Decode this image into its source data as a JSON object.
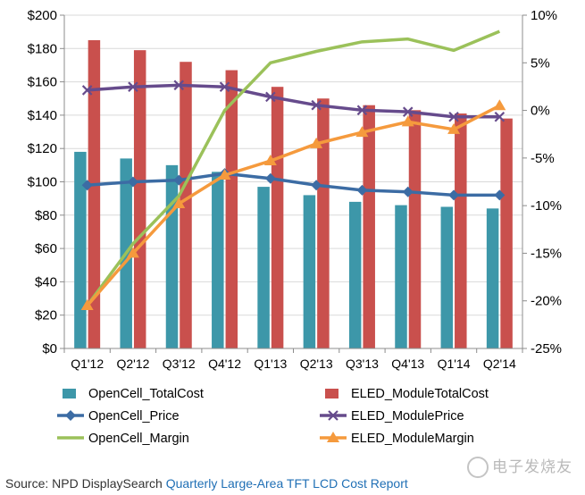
{
  "chart_data": {
    "type": "bar",
    "categories": [
      "Q1'12",
      "Q2'12",
      "Q3'12",
      "Q4'12",
      "Q1'13",
      "Q2'13",
      "Q3'13",
      "Q4'13",
      "Q1'14",
      "Q2'14"
    ],
    "left_axis": {
      "ylim": [
        0,
        200
      ],
      "ticks": [
        0,
        20,
        40,
        60,
        80,
        100,
        120,
        140,
        160,
        180,
        200
      ],
      "tick_labels": [
        "$0",
        "$20",
        "$40",
        "$60",
        "$80",
        "$100",
        "$120",
        "$140",
        "$160",
        "$180",
        "$200"
      ]
    },
    "right_axis": {
      "ylim": [
        -25,
        10
      ],
      "ticks": [
        -25,
        -20,
        -15,
        -10,
        -5,
        0,
        5,
        10
      ],
      "tick_labels": [
        "-25%",
        "-20%",
        "-15%",
        "-10%",
        "-5%",
        "0%",
        "5%",
        "10%"
      ]
    },
    "grid": true,
    "legend_position": "bottom",
    "series": [
      {
        "name": "OpenCell_TotalCost",
        "type": "bar",
        "axis": "left",
        "color": "#3d97a9",
        "values": [
          118,
          114,
          110,
          106,
          97,
          92,
          88,
          86,
          85,
          84
        ]
      },
      {
        "name": "ELED_ModuleTotalCost",
        "type": "bar",
        "axis": "left",
        "color": "#c9504d",
        "values": [
          185,
          179,
          172,
          167,
          157,
          150,
          146,
          143,
          141,
          138
        ]
      },
      {
        "name": "OpenCell_Price",
        "type": "line",
        "marker": "diamond",
        "axis": "left",
        "color": "#3c6ca4",
        "values": [
          98,
          100,
          101,
          105,
          102,
          98,
          95,
          94,
          92,
          92
        ]
      },
      {
        "name": "ELED_ModulePrice",
        "type": "line",
        "marker": "x",
        "axis": "left",
        "color": "#664b8c",
        "values": [
          155,
          157,
          158,
          157,
          151,
          146,
          143,
          142,
          139,
          139
        ]
      },
      {
        "name": "OpenCell_Margin",
        "type": "line",
        "marker": "none",
        "axis": "right",
        "color": "#9bc15a",
        "values": [
          -20.5,
          -14,
          -9,
          0,
          5,
          6.2,
          7.2,
          7.5,
          6.3,
          8.3
        ]
      },
      {
        "name": "ELED_ModuleMargin",
        "type": "line",
        "marker": "triangle",
        "axis": "right",
        "color": "#f59a3d",
        "values": [
          -20.5,
          -15,
          -9.8,
          -6.8,
          -5.3,
          -3.5,
          -2.3,
          -1.2,
          -2,
          0.5
        ]
      }
    ]
  },
  "source": {
    "prefix": "Source: NPD DisplaySearch ",
    "report": "Quarterly Large-Area TFT LCD Cost Report"
  },
  "watermark": "电子发烧友"
}
